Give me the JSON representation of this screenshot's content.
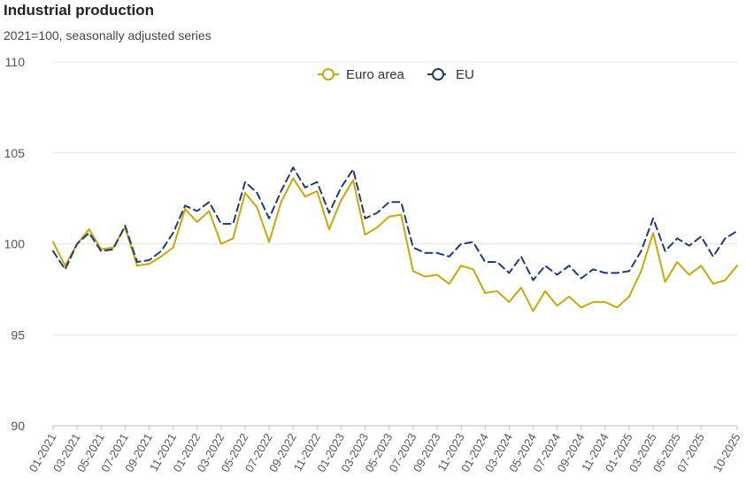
{
  "chart_data": {
    "type": "line",
    "title": "Industrial production",
    "subtitle": "2021=100, seasonally adjusted series",
    "ylim": [
      90,
      110
    ],
    "yticks": [
      90,
      95,
      100,
      105,
      110
    ],
    "grid": true,
    "legend_placement": "top-center",
    "x": [
      "01-2021",
      "02-2021",
      "03-2021",
      "04-2021",
      "05-2021",
      "06-2021",
      "07-2021",
      "08-2021",
      "09-2021",
      "10-2021",
      "11-2021",
      "12-2021",
      "01-2022",
      "02-2022",
      "03-2022",
      "04-2022",
      "05-2022",
      "06-2022",
      "07-2022",
      "08-2022",
      "09-2022",
      "10-2022",
      "11-2022",
      "12-2022",
      "01-2023",
      "02-2023",
      "03-2023",
      "04-2023",
      "05-2023",
      "06-2023",
      "07-2023",
      "08-2023",
      "09-2023",
      "10-2023",
      "11-2023",
      "12-2023",
      "01-2024",
      "02-2024",
      "03-2024",
      "04-2024",
      "05-2024",
      "06-2024",
      "07-2024",
      "08-2024",
      "09-2024",
      "10-2024",
      "11-2024",
      "12-2024",
      "01-2025",
      "02-2025",
      "03-2025",
      "04-2025",
      "05-2025",
      "06-2025",
      "07-2025",
      "08-2025",
      "09-2025",
      "10-2025"
    ],
    "xtick_labels": [
      "01-2021",
      "03-2021",
      "05-2021",
      "07-2021",
      "09-2021",
      "11-2021",
      "01-2022",
      "03-2022",
      "05-2022",
      "07-2022",
      "09-2022",
      "11-2022",
      "01-2023",
      "03-2023",
      "05-2023",
      "07-2023",
      "09-2023",
      "11-2023",
      "01-2024",
      "03-2024",
      "05-2024",
      "07-2024",
      "09-2024",
      "11-2024",
      "01-2025",
      "03-2025",
      "05-2025",
      "07-2025",
      "10-2025"
    ],
    "series": [
      {
        "name": "Euro area",
        "color": "#c9a70a",
        "style": "solid",
        "values": [
          100.1,
          98.8,
          100.0,
          100.8,
          99.7,
          99.8,
          100.9,
          98.8,
          98.9,
          99.3,
          99.8,
          101.9,
          101.2,
          101.8,
          100.0,
          100.3,
          102.8,
          102.0,
          100.1,
          102.3,
          103.6,
          102.6,
          102.9,
          100.8,
          102.4,
          103.5,
          100.5,
          100.9,
          101.5,
          101.6,
          98.5,
          98.2,
          98.3,
          97.8,
          98.8,
          98.6,
          97.3,
          97.4,
          96.8,
          97.6,
          96.3,
          97.4,
          96.6,
          97.1,
          96.5,
          96.8,
          96.8,
          96.5,
          97.1,
          98.5,
          100.6,
          97.9,
          99.0,
          98.3,
          98.8,
          97.8,
          98.0,
          98.8
        ]
      },
      {
        "name": "EU",
        "color": "#1f3a7a",
        "style": "dashed",
        "values": [
          99.6,
          98.6,
          100.0,
          100.6,
          99.6,
          99.7,
          101.0,
          99.0,
          99.1,
          99.6,
          100.6,
          102.1,
          101.8,
          102.3,
          101.1,
          101.1,
          103.4,
          102.8,
          101.4,
          102.9,
          104.2,
          103.1,
          103.4,
          101.7,
          103.1,
          104.1,
          101.4,
          101.7,
          102.3,
          102.3,
          99.8,
          99.5,
          99.5,
          99.3,
          100.0,
          100.1,
          99.0,
          99.0,
          98.4,
          99.3,
          98.0,
          98.8,
          98.3,
          98.8,
          98.1,
          98.6,
          98.4,
          98.4,
          98.5,
          99.6,
          101.4,
          99.6,
          100.3,
          99.9,
          100.4,
          99.3,
          100.3,
          100.7
        ]
      }
    ]
  }
}
